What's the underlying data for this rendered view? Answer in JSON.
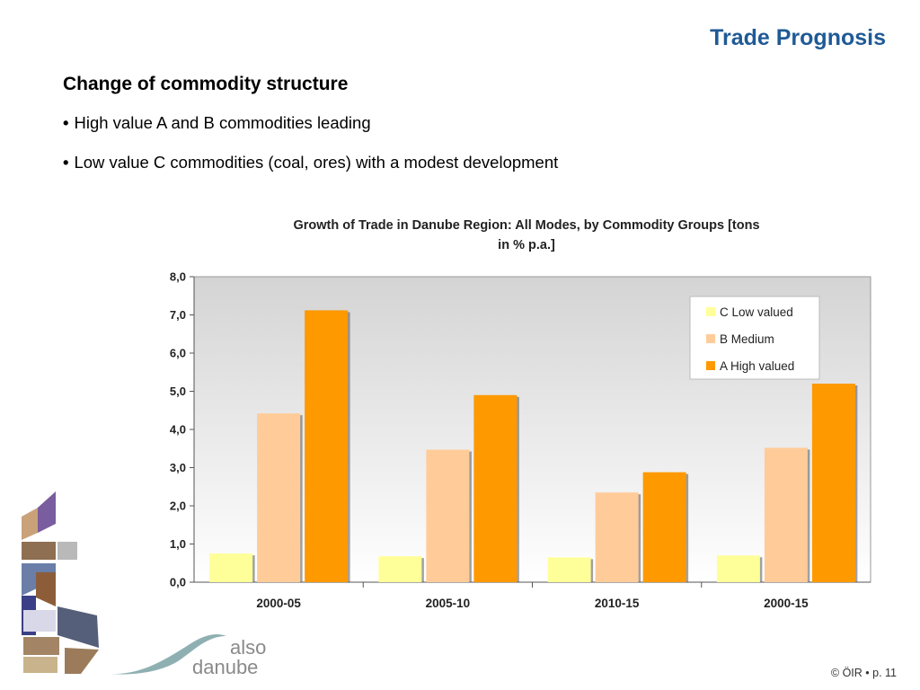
{
  "slide": {
    "title": "Trade Prognosis",
    "subtitle": "Change of commodity structure",
    "bullets": [
      "High value A and B commodities leading",
      "Low value C commodities (coal, ores) with a modest development"
    ],
    "bullet_glyph": "•"
  },
  "chart_data": {
    "type": "bar",
    "title_lines": [
      "Growth of Trade in Danube Region: All Modes, by Commodity Groups [tons",
      "in % p.a.]"
    ],
    "categories": [
      "2000-05",
      "2005-10",
      "2010-15",
      "2000-15"
    ],
    "series": [
      {
        "name": "C Low valued",
        "color": "#ffff99",
        "values": [
          0.75,
          0.68,
          0.65,
          0.7
        ]
      },
      {
        "name": "B Medium",
        "color": "#ffcc99",
        "values": [
          4.42,
          3.47,
          2.35,
          3.52
        ]
      },
      {
        "name": "A High valued",
        "color": "#ff9900",
        "values": [
          7.12,
          4.9,
          2.88,
          5.2
        ]
      }
    ],
    "ylim": [
      0,
      8
    ],
    "yticks": [
      "0,0",
      "1,0",
      "2,0",
      "3,0",
      "4,0",
      "5,0",
      "6,0",
      "7,0",
      "8,0"
    ],
    "grid": false,
    "legend_position": "top-right",
    "plot_background": "#e4e4e4"
  },
  "logo": {
    "line1": "also",
    "line2": "danube"
  },
  "footer": {
    "text": "© ÖIR • p. 11"
  }
}
